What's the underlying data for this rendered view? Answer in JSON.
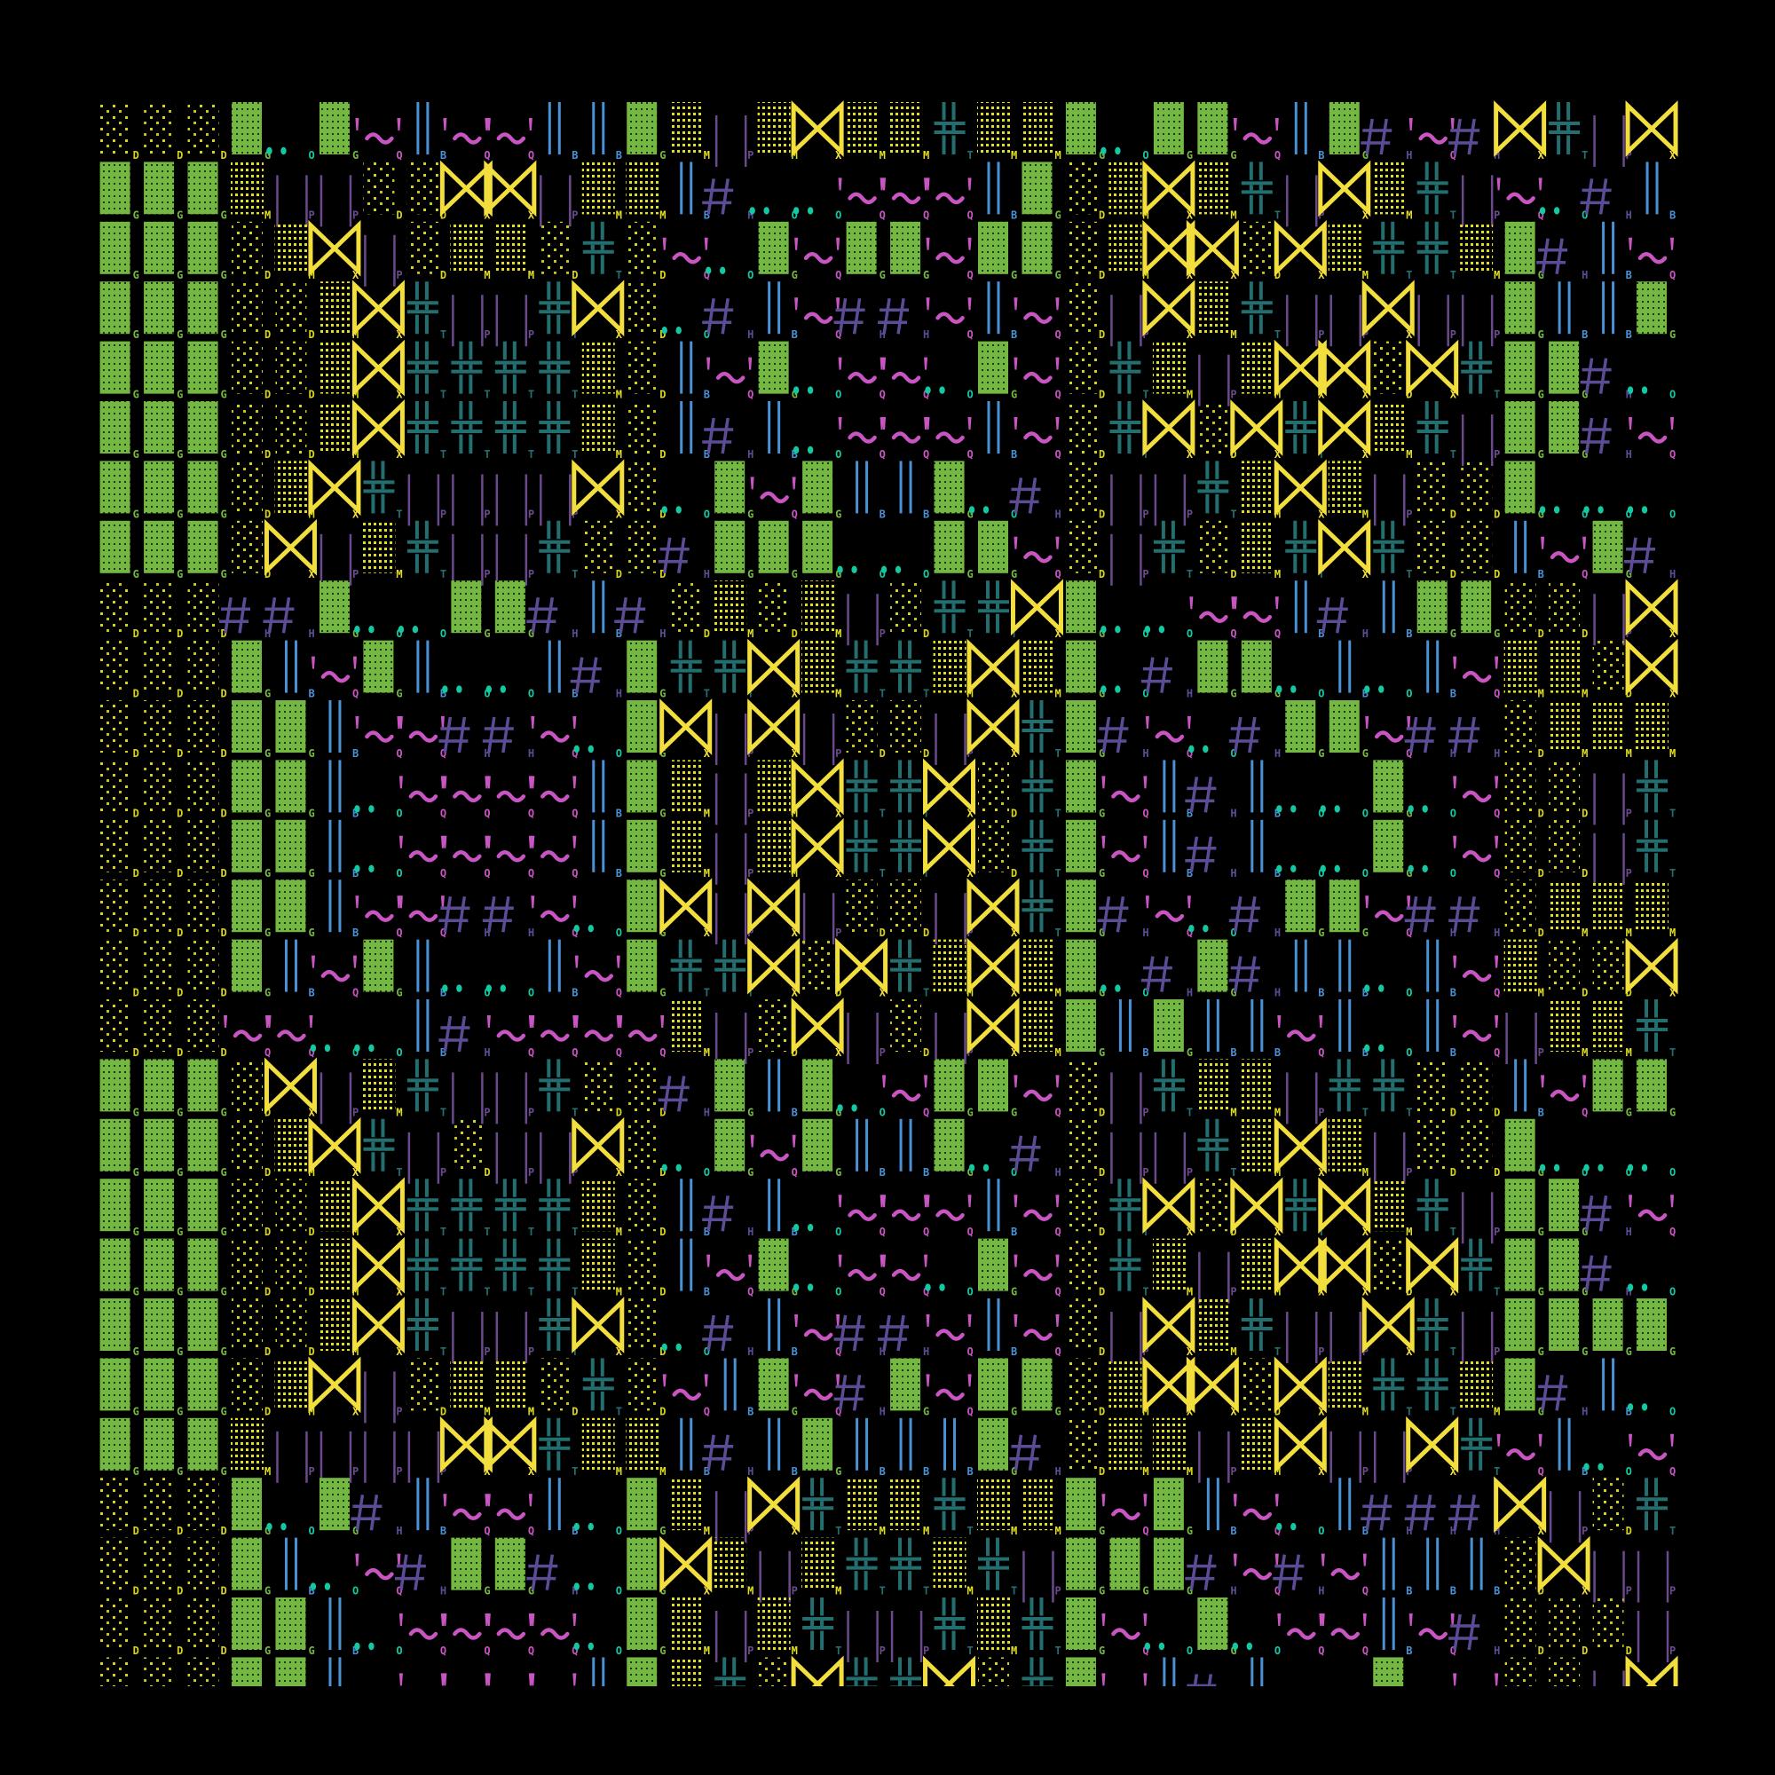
{
  "background": "#000000",
  "grid": {
    "rows": [
      "DDDGOGQBQQBBGMPMXMMTMMGOGGQBGHQHXTPX",
      "GGGMPPDDXXPMMBHOOQQQBGDMXMTPXMTPQOHB",
      "GGGDMXPDMMDTDQOGQGGQGGDMXXDXMTTMGHBQ",
      "GGGDDMXTPPTXDOHBQHHQBQDPXMTPPXPPGBBG",
      "GGGDDMXTTTTMDBQGOQQOGQDTMPMXXDXTGGHO",
      "GGGDDMXTTTTMDBHBOQQQBQDTXDXTXMTPGGHQ",
      "GGGDMXTPPPPXDOGQGBBGOHDPPTMXMPDDGOOO",
      "GGGDXPMTPPTDDHGGGOOGGQDPTDMTXTDDBQGH",
      "DDDHHGOOGGHBHDMDMPDTTXGOOQQBHBGGDDPX",
      "DDDGBQGBOOBHGTTXMTTMXMGOHGGOBOBQMMDX",
      "DDDGGBQQHHQOGXPXPDDPXTGHQOHGGQHHDMMM",
      "DDDGGBOQQQQBGMPMXTTXDTGQBHBOOGOQDDPT",
      "DDDGGBOQQQQBGMPMXTTXDTGQBHBOOGOQDDPT",
      "DDDGGBQQHHQOGXPXPDDPXTGHQOHGGQHHDMMM",
      "DDDGBQGBOOBQGTTXDXTMXMGOHGHBBOBQMDDX",
      "DDDQQOOBHQQQQMPDXPDPXMGBGBBQBOBQPMMT",
      "GGGDXPMTPPTDDHGBGOQGGQDPTMMPTTDDBQGG",
      "GGGDMXTPDPPXDOGQGBBGOHDPPTMXMPDDGOOO",
      "GGGDDMXTTTTMDBHBOQQQBQDTXDXTXMTPGGHQ",
      "GGGDDMXTTTTMDBQGOQQOGQDTMPMXXDXTGGHO",
      "GGGDDMXTPPTXDOHBQHHQBQDPXMTPPXTPGGGG",
      "GGGDMXPDMMDTDQBGQHGQGGDMXXDXMTTMGHBO",
      "GGGMPPPPXXTMMBHBGBBBGHDMMPMXPPXTQBOQ",
      "DDDGOGHBQQBOGMPXTMMTMMGQGBQOBHHHXPDT",
      "DDDGBOQHGGHOGXMPMTTMTPGGGHQHQBBBDXPP",
      "DDDGGBOQQQQOGMPMTPPTMTGQOGOQQBQHDDDP",
      "DDDGGBOQQQQBGMTDXTTXDTGQBHBOOGOQDDPX"
    ]
  },
  "glyph_legend": {
    "G": {
      "name": "dense-green-block",
      "color": "#74b843"
    },
    "D": {
      "name": "sparse-yellow-dots",
      "color": "#d6d31e"
    },
    "M": {
      "name": "medium-yellow-dots",
      "color": "#e2e01e"
    },
    "X": {
      "name": "bowtie",
      "color": "#f2de3c"
    },
    "T": {
      "name": "teal-double-cross",
      "color": "#236f70"
    },
    "P": {
      "name": "purple-bars",
      "color": "#6a4a8c"
    },
    "B": {
      "name": "blue-double-bar",
      "color": "#4a92d6"
    },
    "Q": {
      "name": "pink-quote-tilde",
      "color": "#c855c2"
    },
    "H": {
      "name": "hash",
      "color": "#5c4c96"
    },
    "O": {
      "name": "teal-dots",
      "color": "#14c8a2"
    }
  }
}
